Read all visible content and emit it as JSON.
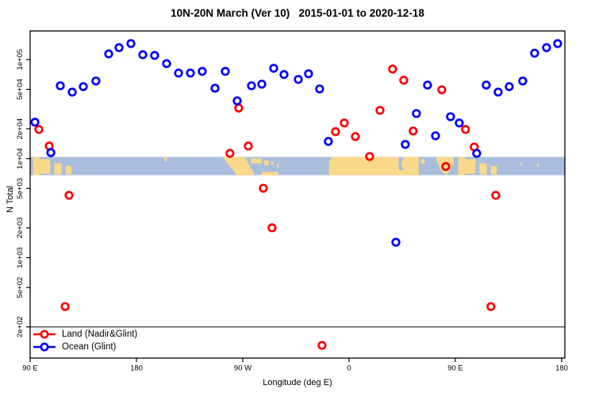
{
  "title": "10N-20N March (Ver 10)   2015-01-01 to 2020-12-18",
  "colors": {
    "land_series": "#ff0000",
    "ocean_series": "#0000ff",
    "map_ocean": "#a9bedd",
    "map_land": "#fbd98b",
    "axis": "#000000",
    "reference_line": "#4a4a4a"
  },
  "legend": {
    "items": [
      {
        "label": "Land (Nadir&Glint)",
        "color": "#ff0000"
      },
      {
        "label": "Ocean (Glint)",
        "color": "#0000ff"
      }
    ]
  },
  "chart_data": {
    "type": "scatter",
    "title": "10N-20N March (Ver 10)   2015-01-01 to 2020-12-18",
    "xlabel": "Longitude (deg E)",
    "ylabel": "N Total",
    "grid": false,
    "legend_position": "bottom-left",
    "x_axis": {
      "note": "longitude axis wraps eastward; deg runs 90E -> 180 -> 90W -> 0 -> 90E -> 180 (90..540 continuous)",
      "range_deg": [
        90,
        540
      ],
      "ticks": [
        {
          "deg": 90,
          "label": "90 E"
        },
        {
          "deg": 180,
          "label": "180"
        },
        {
          "deg": 270,
          "label": "90 W"
        },
        {
          "deg": 360,
          "label": "0"
        },
        {
          "deg": 450,
          "label": "90 E"
        },
        {
          "deg": 540,
          "label": "180"
        }
      ]
    },
    "y_axis": {
      "scale": "log",
      "range": [
        100,
        190000
      ],
      "ticks": [
        {
          "value": 100000,
          "label": "1e+05"
        },
        {
          "value": 50000,
          "label": "5e+04"
        },
        {
          "value": 20000,
          "label": "2e+04"
        },
        {
          "value": 10000,
          "label": "1e+04"
        },
        {
          "value": 5000,
          "label": "5e+03"
        },
        {
          "value": 2000,
          "label": "2e+03"
        },
        {
          "value": 1000,
          "label": "1e+03"
        },
        {
          "value": 500,
          "label": "5e+02"
        },
        {
          "value": 200,
          "label": "2e+02"
        }
      ]
    },
    "reference_line_n": 200,
    "map_band": {
      "n_top": 10400,
      "n_bottom": 6800,
      "land_patches": [
        [
          [
            92.5,
            0
          ],
          [
            98,
            0
          ],
          [
            98,
            1
          ],
          [
            92.5,
            1
          ]
        ],
        [
          [
            98,
            0.12
          ],
          [
            107,
            0.12
          ],
          [
            107,
            0.92
          ],
          [
            98,
            0.92
          ]
        ],
        [
          [
            110.5,
            0.35
          ],
          [
            116.5,
            0.35
          ],
          [
            116.5,
            0.95
          ],
          [
            110.5,
            0.95
          ]
        ],
        [
          [
            120,
            0.5
          ],
          [
            125,
            0.5
          ],
          [
            125,
            0.95
          ],
          [
            120,
            0.95
          ]
        ],
        [
          [
            203.5,
            0.02
          ],
          [
            205.5,
            0.02
          ],
          [
            205.5,
            0.22
          ],
          [
            203.5,
            0.22
          ]
        ],
        [
          [
            253,
            0
          ],
          [
            272,
            0
          ],
          [
            280,
            1
          ],
          [
            265,
            1
          ]
        ],
        [
          [
            277,
            0.08
          ],
          [
            286,
            0.08
          ],
          [
            286,
            0.35
          ],
          [
            277,
            0.35
          ]
        ],
        [
          [
            288,
            0.2
          ],
          [
            292,
            0.2
          ],
          [
            292,
            0.45
          ],
          [
            288,
            0.45
          ]
        ],
        [
          [
            294,
            0.25
          ],
          [
            296,
            0.25
          ],
          [
            296,
            0.42
          ],
          [
            294,
            0.42
          ]
        ],
        [
          [
            299,
            0.35
          ],
          [
            300.5,
            0.35
          ],
          [
            300.5,
            0.6
          ],
          [
            299,
            0.6
          ]
        ],
        [
          [
            286,
            0.82
          ],
          [
            300,
            0.82
          ],
          [
            300,
            1
          ],
          [
            286,
            1
          ]
        ],
        [
          [
            346,
            0
          ],
          [
            402,
            0
          ],
          [
            402,
            1
          ],
          [
            343,
            1
          ],
          [
            343,
            0.25
          ]
        ],
        [
          [
            395,
            0.72
          ],
          [
            413,
            0.72
          ],
          [
            413,
            1
          ],
          [
            395,
            1
          ]
        ],
        [
          [
            406,
            0
          ],
          [
            419,
            0
          ],
          [
            419,
            1
          ],
          [
            409,
            1
          ],
          [
            404,
            0.45
          ]
        ],
        [
          [
            421,
            0.12
          ],
          [
            424,
            0.12
          ],
          [
            424,
            0.35
          ],
          [
            421,
            0.35
          ]
        ],
        [
          [
            434,
            0
          ],
          [
            448.5,
            0
          ],
          [
            448.5,
            0.35
          ],
          [
            442.5,
            1
          ],
          [
            438,
            0.75
          ],
          [
            434,
            0.2
          ]
        ],
        [
          [
            452.5,
            0
          ],
          [
            458,
            0
          ],
          [
            458,
            1
          ],
          [
            452.5,
            1
          ]
        ],
        [
          [
            458,
            0.12
          ],
          [
            467,
            0.12
          ],
          [
            467,
            0.92
          ],
          [
            458,
            0.92
          ]
        ],
        [
          [
            470.5,
            0.35
          ],
          [
            476.5,
            0.35
          ],
          [
            476.5,
            0.95
          ],
          [
            470.5,
            0.95
          ]
        ],
        [
          [
            480,
            0.5
          ],
          [
            485,
            0.5
          ],
          [
            485,
            0.95
          ],
          [
            480,
            0.95
          ]
        ],
        [
          [
            505,
            0.3
          ],
          [
            506.5,
            0.3
          ],
          [
            506.5,
            0.45
          ],
          [
            505,
            0.45
          ]
        ],
        [
          [
            519,
            0.38
          ],
          [
            520.5,
            0.38
          ],
          [
            520.5,
            0.52
          ],
          [
            519,
            0.52
          ]
        ]
      ]
    },
    "series": [
      {
        "name": "Land (Nadir&Glint)",
        "color": "#ff0000",
        "marker": "open-circle",
        "points": [
          {
            "lon": 97.4,
            "n": 19700
          },
          {
            "lon": 106.1,
            "n": 13400
          },
          {
            "lon": 122.9,
            "n": 4260
          },
          {
            "lon": 119.6,
            "n": 321
          },
          {
            "lon": 259.2,
            "n": 11300
          },
          {
            "lon": 266.6,
            "n": 32400
          },
          {
            "lon": 274.7,
            "n": 13400
          },
          {
            "lon": 287.4,
            "n": 5020
          },
          {
            "lon": 294.8,
            "n": 2000
          },
          {
            "lon": 337.1,
            "n": 130
          },
          {
            "lon": 348.6,
            "n": 18700
          },
          {
            "lon": 356.0,
            "n": 22900
          },
          {
            "lon": 365.4,
            "n": 16700
          },
          {
            "lon": 377.4,
            "n": 10500
          },
          {
            "lon": 386.2,
            "n": 30700
          },
          {
            "lon": 396.9,
            "n": 80200
          },
          {
            "lon": 406.3,
            "n": 61900
          },
          {
            "lon": 414.3,
            "n": 19000
          },
          {
            "lon": 438.5,
            "n": 49500
          },
          {
            "lon": 441.9,
            "n": 8300
          },
          {
            "lon": 458.6,
            "n": 19700
          },
          {
            "lon": 466.0,
            "n": 13100
          },
          {
            "lon": 480.1,
            "n": 321
          },
          {
            "lon": 484.2,
            "n": 4260
          }
        ]
      },
      {
        "name": "Ocean (Glint)",
        "color": "#0000ff",
        "marker": "open-circle",
        "points": [
          {
            "lon": 94.0,
            "n": 23300
          },
          {
            "lon": 107.5,
            "n": 11500
          },
          {
            "lon": 115.5,
            "n": 54400
          },
          {
            "lon": 125.6,
            "n": 46900
          },
          {
            "lon": 135.0,
            "n": 53300
          },
          {
            "lon": 145.7,
            "n": 60800
          },
          {
            "lon": 156.5,
            "n": 114000
          },
          {
            "lon": 165.2,
            "n": 132000
          },
          {
            "lon": 175.3,
            "n": 145000
          },
          {
            "lon": 185.4,
            "n": 112000
          },
          {
            "lon": 195.4,
            "n": 110000
          },
          {
            "lon": 205.5,
            "n": 91100
          },
          {
            "lon": 215.6,
            "n": 73100
          },
          {
            "lon": 225.7,
            "n": 73100
          },
          {
            "lon": 235.7,
            "n": 75900
          },
          {
            "lon": 246.5,
            "n": 51400
          },
          {
            "lon": 255.2,
            "n": 75900
          },
          {
            "lon": 265.3,
            "n": 38300
          },
          {
            "lon": 277.4,
            "n": 54400
          },
          {
            "lon": 286.1,
            "n": 56400
          },
          {
            "lon": 296.2,
            "n": 81600
          },
          {
            "lon": 304.9,
            "n": 70500
          },
          {
            "lon": 317.0,
            "n": 63000
          },
          {
            "lon": 325.7,
            "n": 71800
          },
          {
            "lon": 335.1,
            "n": 50500
          },
          {
            "lon": 342.5,
            "n": 14900
          },
          {
            "lon": 399.6,
            "n": 1430
          },
          {
            "lon": 407.6,
            "n": 13900
          },
          {
            "lon": 417.0,
            "n": 28500
          },
          {
            "lon": 426.4,
            "n": 55300
          },
          {
            "lon": 433.2,
            "n": 17000
          },
          {
            "lon": 445.9,
            "n": 26500
          },
          {
            "lon": 453.3,
            "n": 22900
          },
          {
            "lon": 468.1,
            "n": 11300
          },
          {
            "lon": 476.1,
            "n": 55300
          },
          {
            "lon": 486.2,
            "n": 46900
          },
          {
            "lon": 495.6,
            "n": 53300
          },
          {
            "lon": 507.0,
            "n": 60800
          },
          {
            "lon": 517.1,
            "n": 116000
          },
          {
            "lon": 527.2,
            "n": 132000
          },
          {
            "lon": 536.6,
            "n": 145000
          }
        ]
      }
    ]
  }
}
